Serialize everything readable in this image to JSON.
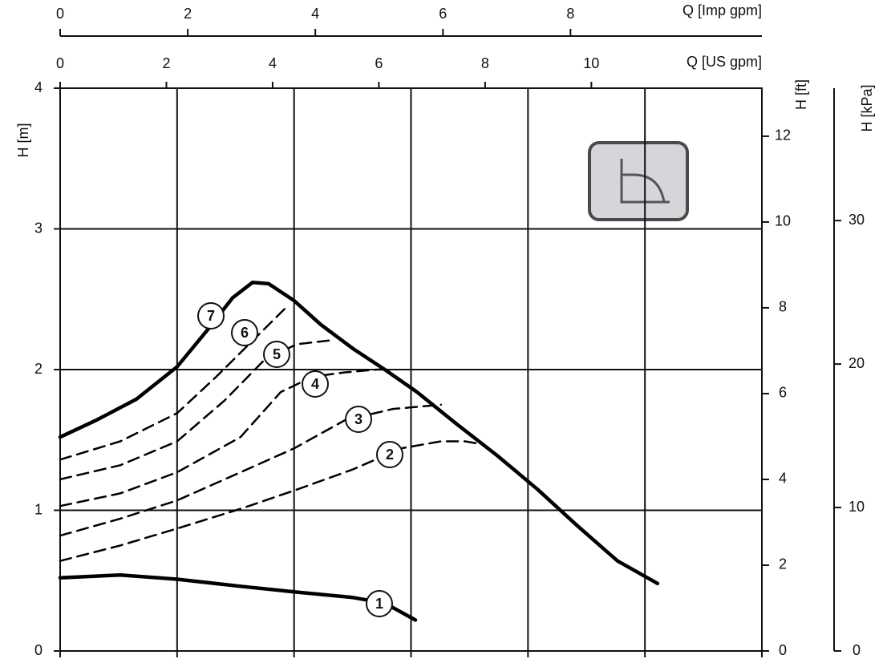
{
  "chart_data": {
    "type": "line",
    "xlim": [
      0,
      3
    ],
    "xticks": [
      0,
      0.5,
      1,
      1.5,
      2,
      2.5,
      3
    ],
    "xtick_labels": false,
    "ylim": [
      0,
      4
    ],
    "yticks": [
      0,
      1,
      2,
      3,
      4
    ],
    "ylabel": "H [m]",
    "grid": true,
    "x_us": {
      "label": "Q [US gpm]",
      "lim": [
        0,
        13.21
      ],
      "ticks": [
        0,
        2,
        4,
        6,
        8,
        10
      ]
    },
    "x_imp": {
      "label": "Q [Imp gpm]",
      "lim": [
        0,
        11.0
      ],
      "ticks": [
        0,
        2,
        4,
        6,
        8
      ]
    },
    "y_ft": {
      "label": "H [ft]",
      "lim": [
        0,
        13.12
      ],
      "ticks": [
        0,
        2,
        4,
        6,
        8,
        10,
        12
      ]
    },
    "y_kpa": {
      "label": "H [kPa]",
      "lim": [
        0,
        39.23
      ],
      "ticks": [
        0,
        10,
        20,
        30
      ]
    },
    "series": [
      {
        "name": "1",
        "color": "#000000",
        "style": "solid",
        "x": [
          0,
          0.257,
          0.5,
          0.771,
          1.0,
          1.251,
          1.388,
          1.519
        ],
        "values": [
          0.52,
          0.54,
          0.51,
          0.46,
          0.42,
          0.38,
          0.34,
          0.22
        ]
      },
      {
        "name": "2",
        "color": "#000000",
        "style": "dashed",
        "x": [
          0,
          0.257,
          0.5,
          0.771,
          1.0,
          1.251,
          1.457,
          1.628,
          1.731,
          1.8
        ],
        "values": [
          0.64,
          0.75,
          0.87,
          1.01,
          1.14,
          1.29,
          1.44,
          1.49,
          1.49,
          1.47
        ]
      },
      {
        "name": "3",
        "color": "#000000",
        "style": "dashed",
        "x": [
          0,
          0.257,
          0.5,
          0.771,
          1.0,
          1.217,
          1.423,
          1.628
        ],
        "values": [
          0.82,
          0.94,
          1.07,
          1.27,
          1.44,
          1.64,
          1.72,
          1.75
        ]
      },
      {
        "name": "4",
        "color": "#000000",
        "style": "dashed",
        "x": [
          0,
          0.257,
          0.5,
          0.771,
          0.943,
          1.08,
          1.217,
          1.354,
          1.388
        ],
        "values": [
          1.03,
          1.12,
          1.27,
          1.52,
          1.84,
          1.95,
          1.98,
          2.0,
          2.0
        ]
      },
      {
        "name": "5",
        "color": "#000000",
        "style": "dashed",
        "x": [
          0,
          0.257,
          0.5,
          0.703,
          0.874,
          1.011,
          1.166
        ],
        "values": [
          1.22,
          1.32,
          1.49,
          1.78,
          2.07,
          2.18,
          2.21
        ]
      },
      {
        "name": "6",
        "color": "#000000",
        "style": "dashed",
        "x": [
          0,
          0.257,
          0.5,
          0.668,
          0.771,
          0.874,
          0.977
        ],
        "values": [
          1.36,
          1.49,
          1.69,
          1.95,
          2.12,
          2.29,
          2.46
        ]
      },
      {
        "name": "7",
        "color": "#000000",
        "style": "solid",
        "x": [
          0,
          0.154,
          0.326,
          0.5,
          0.634,
          0.737,
          0.823,
          0.891,
          1.0,
          1.114,
          1.251,
          1.388,
          1.526,
          1.697,
          1.868,
          2.04,
          2.211,
          2.383,
          2.554
        ],
        "values": [
          1.52,
          1.64,
          1.79,
          2.02,
          2.29,
          2.51,
          2.62,
          2.61,
          2.49,
          2.32,
          2.15,
          2.0,
          1.84,
          1.61,
          1.39,
          1.15,
          0.89,
          0.64,
          0.48
        ]
      }
    ]
  }
}
